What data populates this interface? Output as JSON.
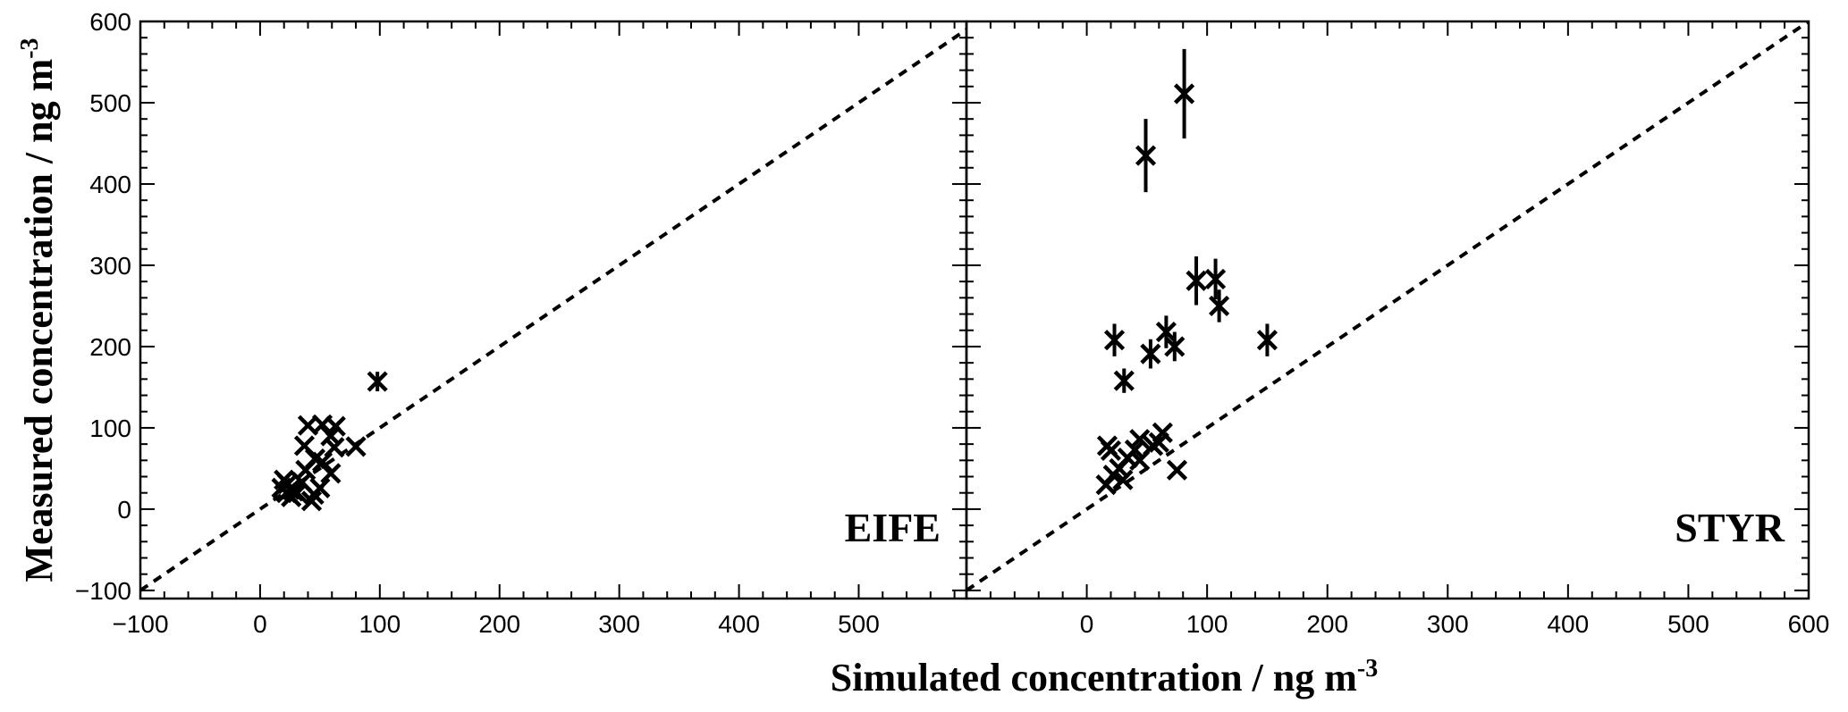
{
  "chart_data": {
    "type": "scatter",
    "ylabel": "Measured concentration / ng m",
    "ylabel_sup": "-3",
    "xlabel": "Simulated concentration / ng m",
    "xlabel_sup": "-3",
    "reference_line": "1:1",
    "grid": false,
    "panels": [
      {
        "label": "EIFE",
        "xlim": [
          -100,
          590
        ],
        "ylim": [
          -110,
          600
        ],
        "xticks": [
          -100,
          0,
          100,
          200,
          300,
          400,
          500
        ],
        "xtick_labels": [
          "−100",
          "0",
          "100",
          "200",
          "300",
          "400",
          "500"
        ],
        "yticks": [
          -100,
          0,
          100,
          200,
          300,
          400,
          500,
          600
        ],
        "ytick_labels": [
          "−100",
          "0",
          "100",
          "200",
          "300",
          "400",
          "500",
          "600"
        ],
        "points": [
          {
            "x": 98,
            "y": 157,
            "err": 12
          },
          {
            "x": 40,
            "y": 103,
            "err": 0
          },
          {
            "x": 52,
            "y": 104,
            "err": 0
          },
          {
            "x": 63,
            "y": 102,
            "err": 0
          },
          {
            "x": 59,
            "y": 90,
            "err": 0
          },
          {
            "x": 37,
            "y": 78,
            "err": 0
          },
          {
            "x": 62,
            "y": 76,
            "err": 0
          },
          {
            "x": 80,
            "y": 77,
            "err": 0
          },
          {
            "x": 46,
            "y": 62,
            "err": 0
          },
          {
            "x": 52,
            "y": 58,
            "err": 0
          },
          {
            "x": 38,
            "y": 48,
            "err": 0
          },
          {
            "x": 59,
            "y": 44,
            "err": 0
          },
          {
            "x": 20,
            "y": 36,
            "err": 0
          },
          {
            "x": 23,
            "y": 31,
            "err": 0
          },
          {
            "x": 35,
            "y": 33,
            "err": 0
          },
          {
            "x": 18,
            "y": 26,
            "err": 0
          },
          {
            "x": 25,
            "y": 24,
            "err": 0
          },
          {
            "x": 28,
            "y": 22,
            "err": 0
          },
          {
            "x": 22,
            "y": 20,
            "err": 0
          },
          {
            "x": 31,
            "y": 20,
            "err": 0
          },
          {
            "x": 45,
            "y": 18,
            "err": 0
          },
          {
            "x": 50,
            "y": 26,
            "err": 0
          },
          {
            "x": 43,
            "y": 10,
            "err": 0
          },
          {
            "x": 26,
            "y": 15,
            "err": 0
          }
        ]
      },
      {
        "label": "STYR",
        "xlim": [
          -100,
          600
        ],
        "ylim": [
          -110,
          600
        ],
        "xticks": [
          0,
          100,
          200,
          300,
          400,
          500,
          600
        ],
        "xtick_labels": [
          "0",
          "100",
          "200",
          "300",
          "400",
          "500",
          "600"
        ],
        "yticks": [
          -100,
          0,
          100,
          200,
          300,
          400,
          500,
          600
        ],
        "ytick_labels": [],
        "points": [
          {
            "x": 81,
            "y": 511,
            "err": 55
          },
          {
            "x": 49,
            "y": 435,
            "err": 45
          },
          {
            "x": 91,
            "y": 281,
            "err": 30
          },
          {
            "x": 107,
            "y": 283,
            "err": 25
          },
          {
            "x": 110,
            "y": 250,
            "err": 20
          },
          {
            "x": 23,
            "y": 208,
            "err": 20
          },
          {
            "x": 66,
            "y": 218,
            "err": 20
          },
          {
            "x": 73,
            "y": 200,
            "err": 18
          },
          {
            "x": 150,
            "y": 208,
            "err": 20
          },
          {
            "x": 53,
            "y": 191,
            "err": 18
          },
          {
            "x": 31,
            "y": 158,
            "err": 15
          },
          {
            "x": 17,
            "y": 78,
            "err": 0
          },
          {
            "x": 20,
            "y": 72,
            "err": 0
          },
          {
            "x": 44,
            "y": 86,
            "err": 0
          },
          {
            "x": 60,
            "y": 82,
            "err": 0
          },
          {
            "x": 63,
            "y": 94,
            "err": 0
          },
          {
            "x": 55,
            "y": 78,
            "err": 0
          },
          {
            "x": 40,
            "y": 73,
            "err": 0
          },
          {
            "x": 34,
            "y": 63,
            "err": 0
          },
          {
            "x": 44,
            "y": 60,
            "err": 0
          },
          {
            "x": 27,
            "y": 50,
            "err": 0
          },
          {
            "x": 22,
            "y": 42,
            "err": 0
          },
          {
            "x": 30,
            "y": 36,
            "err": 0
          },
          {
            "x": 16,
            "y": 30,
            "err": 0
          },
          {
            "x": 75,
            "y": 48,
            "err": 0
          }
        ]
      }
    ]
  }
}
